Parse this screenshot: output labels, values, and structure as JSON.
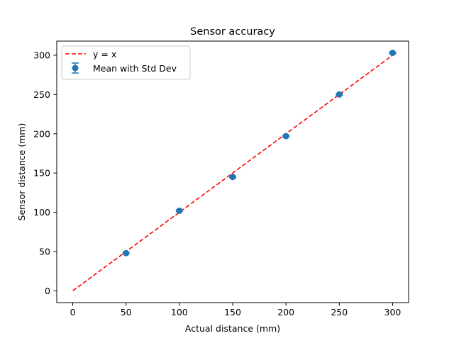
{
  "chart_data": {
    "type": "scatter",
    "title": "Sensor accuracy",
    "xlabel": "Actual distance (mm)",
    "ylabel": "Sensor distance (mm)",
    "xlim": [
      -15,
      315
    ],
    "ylim": [
      -15,
      318
    ],
    "xticks": [
      0,
      50,
      100,
      150,
      200,
      250,
      300
    ],
    "yticks": [
      0,
      50,
      100,
      150,
      200,
      250,
      300
    ],
    "grid": false,
    "legend": "top-left",
    "series": [
      {
        "name": "y = x",
        "kind": "line",
        "style": "dashed",
        "color": "#ff0000",
        "x": [
          0,
          300
        ],
        "y": [
          0,
          300
        ]
      },
      {
        "name": "Mean with Std Dev",
        "kind": "errorbar",
        "color": "#1f77b4",
        "x": [
          50,
          100,
          150,
          200,
          250,
          300
        ],
        "y": [
          48,
          102,
          145,
          197,
          250,
          303
        ],
        "yerr": [
          1,
          1,
          1,
          1,
          1,
          1
        ]
      }
    ]
  }
}
